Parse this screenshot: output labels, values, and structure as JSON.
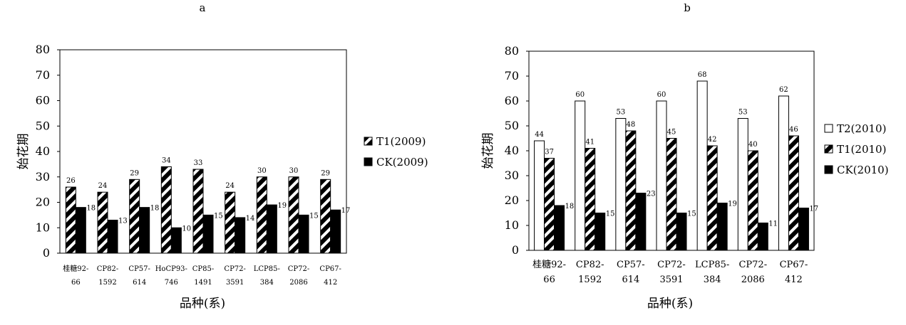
{
  "chart_data": [
    {
      "type": "bar",
      "panel_label": "a",
      "categories": [
        [
          "桂糖92-",
          "66"
        ],
        [
          "CP82-",
          "1592"
        ],
        [
          "CP57-",
          "614"
        ],
        [
          "HoCP93-",
          "746"
        ],
        [
          "CP85-",
          "1491"
        ],
        [
          "CP72-",
          "3591"
        ],
        [
          "LCP85-",
          "384"
        ],
        [
          "CP72-",
          "2086"
        ],
        [
          "CP67-",
          "412"
        ]
      ],
      "series": [
        {
          "name": "T1(2009)",
          "pattern": "hatch",
          "values": [
            26,
            24,
            29,
            34,
            33,
            24,
            30,
            30,
            29
          ]
        },
        {
          "name": "CK(2009)",
          "pattern": "solid",
          "values": [
            18,
            13,
            18,
            10,
            15,
            14,
            19,
            15,
            17
          ]
        }
      ],
      "xlabel": "品种(系)",
      "ylabel": "始花期",
      "ylim": [
        0,
        80
      ],
      "yticks": [
        0,
        10,
        20,
        30,
        40,
        50,
        60,
        70,
        80
      ],
      "legend_position": "right",
      "grid": false
    },
    {
      "type": "bar",
      "panel_label": "b",
      "categories": [
        [
          "桂糖92-",
          "66"
        ],
        [
          "CP82-",
          "1592"
        ],
        [
          "CP57-",
          "614"
        ],
        [
          "CP72-",
          "3591"
        ],
        [
          "LCP85-",
          "384"
        ],
        [
          "CP72-",
          "2086"
        ],
        [
          "CP67-",
          "412"
        ]
      ],
      "series": [
        {
          "name": "T2(2010)",
          "pattern": "white",
          "values": [
            44,
            60,
            53,
            60,
            68,
            53,
            62
          ]
        },
        {
          "name": "T1(2010)",
          "pattern": "hatch",
          "values": [
            37,
            41,
            48,
            45,
            42,
            40,
            46
          ]
        },
        {
          "name": "CK(2010)",
          "pattern": "solid",
          "values": [
            18,
            15,
            23,
            15,
            19,
            11,
            17
          ]
        }
      ],
      "xlabel": "品种(系)",
      "ylabel": "始花期",
      "ylim": [
        0,
        80
      ],
      "yticks": [
        0,
        10,
        20,
        30,
        40,
        50,
        60,
        70,
        80
      ],
      "legend_position": "right",
      "grid": false
    }
  ]
}
